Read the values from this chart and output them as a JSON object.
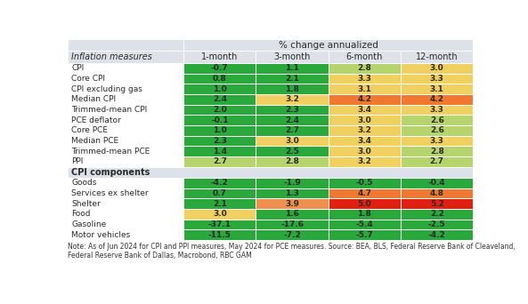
{
  "title": "% change annualized",
  "col_header": [
    "1-month",
    "3-month",
    "6-month",
    "12-month"
  ],
  "header_label": "Inflation measures",
  "data_rows": [
    {
      "label": "CPI",
      "vals": [
        -0.7,
        1.1,
        2.8,
        3.0
      ],
      "colors": [
        "#2aa83c",
        "#2aa83c",
        "#b5d46e",
        "#f0d060"
      ]
    },
    {
      "label": "Core CPI",
      "vals": [
        0.8,
        2.1,
        3.3,
        3.3
      ],
      "colors": [
        "#2aa83c",
        "#2aa83c",
        "#f0d060",
        "#f0d060"
      ]
    },
    {
      "label": "CPI excluding gas",
      "vals": [
        1.0,
        1.8,
        3.1,
        3.1
      ],
      "colors": [
        "#2aa83c",
        "#2aa83c",
        "#f0d060",
        "#f0d060"
      ]
    },
    {
      "label": "Median CPI",
      "vals": [
        2.4,
        3.2,
        4.2,
        4.2
      ],
      "colors": [
        "#2aa83c",
        "#f0d060",
        "#f07830",
        "#f07830"
      ]
    },
    {
      "label": "Trimmed-mean CPI",
      "vals": [
        2.0,
        2.3,
        3.4,
        3.3
      ],
      "colors": [
        "#2aa83c",
        "#2aa83c",
        "#f0d060",
        "#f0d060"
      ]
    },
    {
      "label": "PCE deflator",
      "vals": [
        -0.1,
        2.4,
        3.0,
        2.6
      ],
      "colors": [
        "#2aa83c",
        "#2aa83c",
        "#f0d060",
        "#b5d46e"
      ]
    },
    {
      "label": "Core PCE",
      "vals": [
        1.0,
        2.7,
        3.2,
        2.6
      ],
      "colors": [
        "#2aa83c",
        "#2aa83c",
        "#f0d060",
        "#b5d46e"
      ]
    },
    {
      "label": "Median PCE",
      "vals": [
        2.3,
        3.0,
        3.4,
        3.3
      ],
      "colors": [
        "#2aa83c",
        "#f0d060",
        "#f0d060",
        "#f0d060"
      ]
    },
    {
      "label": "Trimmed-mean PCE",
      "vals": [
        1.4,
        2.5,
        3.0,
        2.8
      ],
      "colors": [
        "#2aa83c",
        "#2aa83c",
        "#f0d060",
        "#b5d46e"
      ]
    },
    {
      "label": "PPI",
      "vals": [
        2.7,
        2.8,
        3.2,
        2.7
      ],
      "colors": [
        "#b5d46e",
        "#b5d46e",
        "#f0d060",
        "#b5d46e"
      ]
    }
  ],
  "section2_label": "CPI components",
  "component_rows": [
    {
      "label": "Goods",
      "vals": [
        -4.2,
        -1.9,
        -0.5,
        -0.4
      ],
      "colors": [
        "#2aa83c",
        "#2aa83c",
        "#2aa83c",
        "#2aa83c"
      ]
    },
    {
      "label": "Services ex shelter",
      "vals": [
        0.7,
        1.3,
        4.7,
        4.8
      ],
      "colors": [
        "#2aa83c",
        "#2aa83c",
        "#f07830",
        "#f07830"
      ]
    },
    {
      "label": "Shelter",
      "vals": [
        2.1,
        3.9,
        5.0,
        5.2
      ],
      "colors": [
        "#2aa83c",
        "#f09050",
        "#e02010",
        "#e02010"
      ]
    },
    {
      "label": "Food",
      "vals": [
        3.0,
        1.6,
        1.8,
        2.2
      ],
      "colors": [
        "#f0d060",
        "#2aa83c",
        "#2aa83c",
        "#2aa83c"
      ]
    },
    {
      "label": "Gasoline",
      "vals": [
        -37.1,
        -17.6,
        -5.4,
        -2.5
      ],
      "colors": [
        "#2aa83c",
        "#2aa83c",
        "#2aa83c",
        "#2aa83c"
      ]
    },
    {
      "label": "Motor vehicles",
      "vals": [
        -11.5,
        -7.2,
        -5.7,
        -4.2
      ],
      "colors": [
        "#2aa83c",
        "#2aa83c",
        "#2aa83c",
        "#2aa83c"
      ]
    }
  ],
  "note": "Note: As of Jun 2024 for CPI and PPI measures, May 2024 for PCE measures. Source: BEA, BLS, Federal Reserve Bank of Cleaveland,\nFederal Reserve Bank of Dallas, Macrobond, RBC GAM",
  "header_bg": "#dde1e8",
  "section_bg": "#dde1e8",
  "white_bg": "#ffffff",
  "text_dark": "#2a2a2a",
  "border_color": "#ffffff"
}
